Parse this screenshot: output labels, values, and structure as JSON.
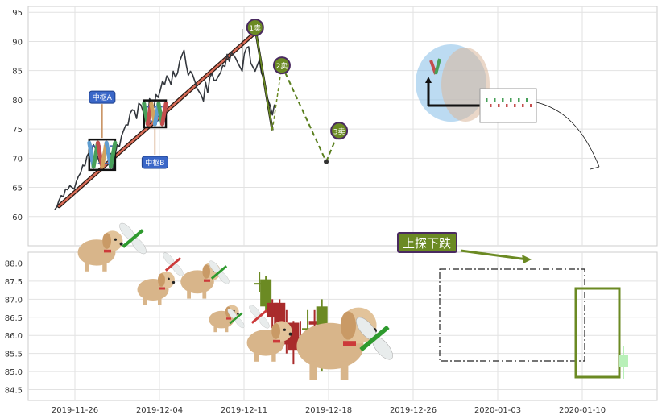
{
  "chart_data": [
    {
      "type": "line",
      "panel": "upper",
      "ylim": [
        55,
        96
      ],
      "yticks": [
        60,
        65,
        70,
        75,
        80,
        85,
        90,
        95
      ],
      "grid": true,
      "price_series": {
        "color": "#33373d",
        "points": [
          [
            0,
            61.2
          ],
          [
            0.5,
            61.7
          ],
          [
            1,
            62.8
          ],
          [
            1.5,
            63.6
          ],
          [
            2,
            63.4
          ],
          [
            2.5,
            64.7
          ],
          [
            3,
            64.6
          ],
          [
            3.5,
            65.3
          ],
          [
            4,
            65.0
          ],
          [
            4.5,
            64.7
          ],
          [
            5,
            66.0
          ],
          [
            5.5,
            66.9
          ],
          [
            6,
            67.5
          ],
          [
            6.5,
            68.8
          ],
          [
            7,
            68.7
          ],
          [
            7.5,
            70.4
          ],
          [
            8,
            71.0
          ],
          [
            8.5,
            70.9
          ],
          [
            9,
            72.3
          ],
          [
            9.5,
            71.6
          ],
          [
            10,
            70.1
          ],
          [
            10.5,
            69.0
          ],
          [
            11,
            70.0
          ],
          [
            11.5,
            71.4
          ],
          [
            12,
            70.9
          ],
          [
            12.5,
            70.5
          ],
          [
            13,
            70.8
          ],
          [
            13.5,
            68.0
          ],
          [
            14,
            70.6
          ],
          [
            14.5,
            72.3
          ],
          [
            15,
            72.0
          ],
          [
            15.5,
            73.8
          ],
          [
            16,
            74.8
          ],
          [
            16.5,
            75.7
          ],
          [
            17,
            75.7
          ],
          [
            17.5,
            77.7
          ],
          [
            18,
            78.3
          ],
          [
            18.5,
            78.1
          ],
          [
            19,
            76.8
          ],
          [
            19.5,
            79.4
          ],
          [
            20,
            79.1
          ],
          [
            20.5,
            78.0
          ],
          [
            21,
            79.4
          ],
          [
            21.5,
            76.2
          ],
          [
            22,
            80.2
          ],
          [
            22.5,
            79.4
          ],
          [
            23,
            78.7
          ],
          [
            23.5,
            80.9
          ],
          [
            24,
            80.4
          ],
          [
            24.5,
            81.7
          ],
          [
            25,
            83.2
          ],
          [
            25.5,
            82.6
          ],
          [
            26,
            84.1
          ],
          [
            26.5,
            83.5
          ],
          [
            27,
            82.6
          ],
          [
            27.5,
            84.9
          ],
          [
            28,
            83.9
          ],
          [
            28.5,
            84.6
          ],
          [
            29,
            86.6
          ],
          [
            29.5,
            87.6
          ],
          [
            30,
            88.5
          ],
          [
            30.5,
            86.0
          ],
          [
            31,
            84.2
          ],
          [
            31.5,
            84.9
          ],
          [
            32,
            84.3
          ],
          [
            32.5,
            83.2
          ],
          [
            33,
            82.0
          ],
          [
            33.5,
            81.4
          ],
          [
            34,
            80.8
          ],
          [
            34.5,
            79.8
          ],
          [
            35,
            83.0
          ],
          [
            35.5,
            81.2
          ],
          [
            36,
            83.9
          ],
          [
            36.5,
            84.5
          ],
          [
            37,
            83.3
          ],
          [
            37.5,
            83.4
          ],
          [
            38,
            84.1
          ],
          [
            38.5,
            84.7
          ],
          [
            39,
            85.9
          ],
          [
            39.5,
            85.7
          ],
          [
            40,
            87.8
          ],
          [
            40.5,
            86.6
          ],
          [
            41,
            88.1
          ],
          [
            41.5,
            87.7
          ],
          [
            42,
            87.1
          ],
          [
            42.5,
            86.3
          ],
          [
            43,
            85.6
          ],
          [
            43.5,
            84.9
          ],
          [
            44,
            87.9
          ],
          [
            44.5,
            88.9
          ],
          [
            45,
            89.1
          ],
          [
            45.5,
            86.3
          ],
          [
            46,
            85.6
          ],
          [
            46.5,
            84.9
          ],
          [
            47,
            85.9
          ],
          [
            47.5,
            86.8
          ],
          [
            48,
            84.5
          ],
          [
            48.5,
            83.8
          ],
          [
            49,
            81.0
          ],
          [
            49.5,
            80.0
          ],
          [
            50,
            79.0
          ],
          [
            50.5,
            77.4
          ],
          [
            51,
            79.2
          ]
        ]
      },
      "trend_line": {
        "color": "#8a3a2a",
        "from": [
          1,
          61.8
        ],
        "to": [
          46.5,
          91.5
        ]
      },
      "zhongshu": [
        {
          "label": "中枢A",
          "x0": 8.0,
          "x1": 14.0,
          "y0": 68.0,
          "y1": 73.2
        },
        {
          "label": "中枢B",
          "x0": 20.7,
          "x1": 25.8,
          "y0": 75.3,
          "y1": 79.9
        }
      ],
      "buy_sell_points": [
        {
          "label": "1卖",
          "x": 46.5,
          "y": 92.4
        },
        {
          "label": "2卖",
          "x": 52.7,
          "y": 85.9
        },
        {
          "label": "3卖",
          "x": 66.0,
          "y": 74.7
        }
      ],
      "forecast_path": {
        "color": "#5a7f1e",
        "points": [
          [
            46.5,
            92.4
          ],
          [
            50.5,
            74.8
          ],
          [
            52.7,
            85.9
          ],
          [
            63.0,
            69.4
          ],
          [
            66.0,
            74.7
          ]
        ]
      }
    },
    {
      "type": "candlestick",
      "panel": "lower",
      "ylim": [
        84.2,
        88.3
      ],
      "yticks": [
        84.5,
        85.0,
        85.5,
        86.0,
        86.5,
        87.0,
        87.5,
        88.0
      ],
      "x_tick_labels": [
        "2019-11-26",
        "2019-12-04",
        "2019-12-11",
        "2019-12-18",
        "2019-12-26",
        "2020-01-03",
        "2020-01-10"
      ],
      "annotation": "上探下跌",
      "candles": [
        {
          "x": 47.5,
          "o": 87.45,
          "c": 87.45,
          "h": 87.75,
          "l": 87.2,
          "up": true
        },
        {
          "x": 49.0,
          "o": 86.8,
          "c": 87.55,
          "h": 87.65,
          "l": 86.65,
          "up": true
        },
        {
          "x": 50.5,
          "o": 86.9,
          "c": 86.5,
          "h": 87.0,
          "l": 86.2,
          "up": false
        },
        {
          "x": 52.2,
          "o": 86.9,
          "c": 85.95,
          "h": 87.0,
          "l": 85.8,
          "up": false
        },
        {
          "x": 53.8,
          "o": 85.9,
          "c": 85.75,
          "h": 86.7,
          "l": 85.5,
          "up": false
        },
        {
          "x": 55.4,
          "o": 86.35,
          "c": 85.6,
          "h": 86.4,
          "l": 85.2,
          "up": false
        },
        {
          "x": 57.0,
          "o": 85.85,
          "c": 85.75,
          "h": 86.4,
          "l": 85.5,
          "up": false
        },
        {
          "x": 58.7,
          "o": 86.2,
          "c": 86.2,
          "h": 86.7,
          "l": 85.95,
          "up": true
        },
        {
          "x": 60.3,
          "o": 86.4,
          "c": 86.3,
          "h": 86.7,
          "l": 85.8,
          "up": false
        },
        {
          "x": 62.0,
          "o": 85.4,
          "c": 86.8,
          "h": 87.0,
          "l": 85.0,
          "up": true
        }
      ]
    }
  ]
}
